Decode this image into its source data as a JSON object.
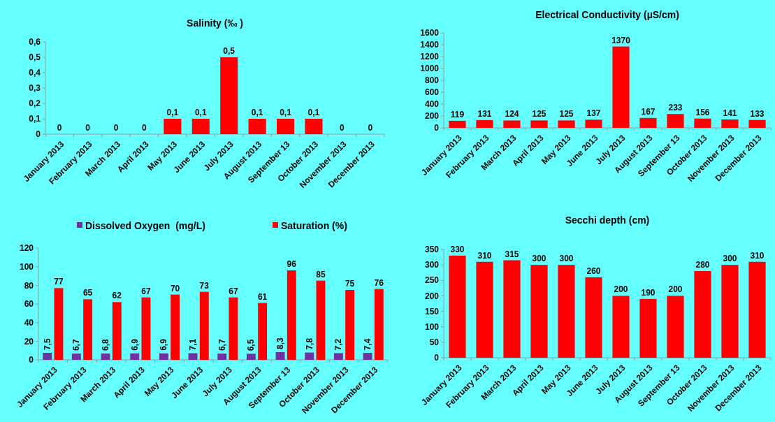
{
  "chart_data": [
    {
      "type": "bar",
      "title": "Salinity (‰ )",
      "categories": [
        "January 2013",
        "February 2013",
        "March 2013",
        "April 2013",
        "May 2013",
        "June 2013",
        "July 2013",
        "August 2013",
        "September 13",
        "October 2013",
        "November 2013",
        "December 2013"
      ],
      "series": [
        {
          "color": "#ff0000",
          "values": [
            0,
            0,
            0,
            0,
            0.1,
            0.1,
            0.5,
            0.1,
            0.1,
            0.1,
            0,
            0
          ],
          "value_labels": [
            "0",
            "0",
            "0",
            "0",
            "0,1",
            "0,1",
            "0,5",
            "0,1",
            "0,1",
            "0,1",
            "0",
            "0"
          ]
        }
      ],
      "ylim": [
        0,
        0.6
      ],
      "yticks": [
        0,
        {
          "value": 0.1,
          "label": "0,1"
        },
        {
          "value": 0.2,
          "label": "0,2"
        },
        {
          "value": 0.3,
          "label": "0,3"
        },
        {
          "value": 0.4,
          "label": "0,4"
        },
        {
          "value": 0.5,
          "label": "0,5"
        },
        {
          "value": 0.6,
          "label": "0,6"
        }
      ],
      "grid": false,
      "legend": false
    },
    {
      "type": "bar",
      "title": "Electrical Conductivity (µS/cm)",
      "categories": [
        "January 2013",
        "February 2013",
        "March 2013",
        "April 2013",
        "May 2013",
        "June 2013",
        "July 2013",
        "August 2013",
        "September 13",
        "October 2013",
        "November 2013",
        "December 2013"
      ],
      "series": [
        {
          "color": "#ff0000",
          "values": [
            119,
            131,
            124,
            125,
            125,
            137,
            1370,
            167,
            233,
            156,
            141,
            133
          ]
        }
      ],
      "ylim": [
        0,
        1600
      ],
      "yticks": [
        0,
        200,
        400,
        600,
        800,
        1000,
        1200,
        1400,
        1600
      ],
      "data_labels": true,
      "grid": false,
      "legend": false
    },
    {
      "type": "bar",
      "categories": [
        "January 2013",
        "February 2013",
        "March 2013",
        "April 2013",
        "May 2013",
        "June 2013",
        "July 2013",
        "August 2013",
        "September 13",
        "October 2013",
        "November 2013",
        "December 2013"
      ],
      "series": [
        {
          "name": "Dissolved Oxygen  (mg/L)",
          "color": "#7030a0",
          "values": [
            7.5,
            6.7,
            6.8,
            6.9,
            6.9,
            7.1,
            6.7,
            6.5,
            8.3,
            7.8,
            7.2,
            7.4
          ],
          "value_labels": [
            "7,5",
            "6,7",
            "6,8",
            "6,9",
            "6,9",
            "7,1",
            "6,7",
            "6,5",
            "8,3",
            "7,8",
            "7,2",
            "7,4"
          ]
        },
        {
          "name": "Saturation (%)",
          "color": "#ff0000",
          "values": [
            77,
            65,
            62,
            67,
            70,
            73,
            67,
            61,
            96,
            85,
            75,
            76
          ],
          "value_labels": [
            "77",
            "65",
            "62",
            "67",
            "70",
            "73",
            "67",
            "61",
            "96",
            "85",
            "75",
            "76"
          ]
        }
      ],
      "ylim": [
        0,
        120
      ],
      "yticks": [
        0,
        20,
        40,
        60,
        80,
        100,
        120
      ],
      "grid": false,
      "legend": "top"
    },
    {
      "type": "bar",
      "title": "Secchi depth (cm)",
      "categories": [
        "January 2013",
        "February 2013",
        "March 2013",
        "April 2013",
        "May 2013",
        "June 2013",
        "July 2013",
        "August 2013",
        "September 13",
        "October 2013",
        "November 2013",
        "December 2013"
      ],
      "series": [
        {
          "color": "#ff0000",
          "values": [
            330,
            310,
            315,
            300,
            300,
            260,
            200,
            190,
            200,
            280,
            300,
            310
          ]
        }
      ],
      "ylim": [
        0,
        350
      ],
      "yticks": [
        0,
        50,
        100,
        150,
        200,
        250,
        300,
        350
      ],
      "data_labels": true,
      "grid": false,
      "legend": false
    }
  ]
}
